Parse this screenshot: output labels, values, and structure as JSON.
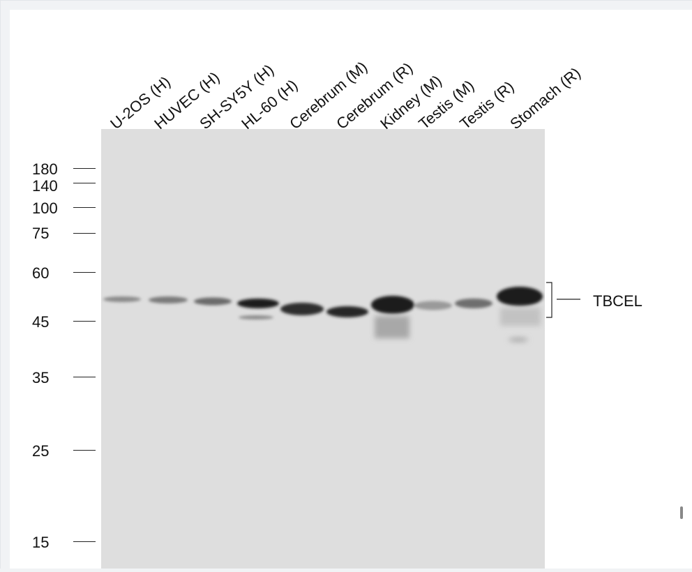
{
  "lanes": [
    "U-2OS (H)",
    "HUVEC (H)",
    "SH-SY5Y (H)",
    "HL-60 (H)",
    "Cerebrum (M)",
    "Cerebrum (R)",
    "Kidney (M)",
    "Testis (M)",
    "Testis (R)",
    "Stomach (R)"
  ],
  "markers": [
    "180",
    "140",
    "100",
    "75",
    "60",
    "45",
    "35",
    "25",
    "15"
  ],
  "target": "TBCEL",
  "colors": {
    "membrane": "#dedede",
    "band": "#1c1c1c",
    "page_background": "#ffffff"
  }
}
